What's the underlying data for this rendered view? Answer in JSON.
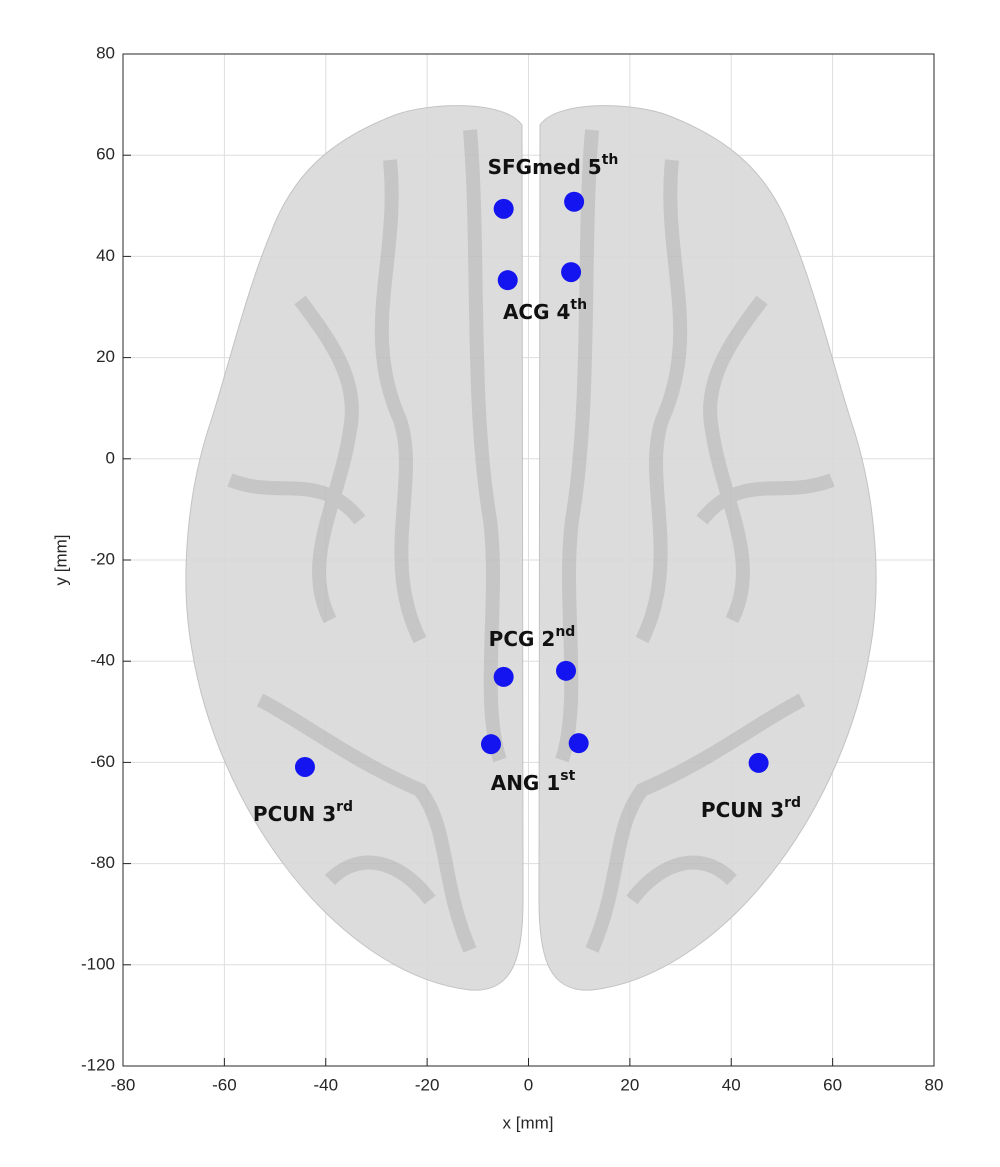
{
  "chart_data": {
    "type": "scatter",
    "x": [
      -4.9,
      9,
      -4.1,
      8.4,
      -4.9,
      7.4,
      -7.4,
      9.9,
      -44.1,
      45.4
    ],
    "values": [
      49.4,
      50.8,
      35.3,
      36.9,
      -43.1,
      -41.9,
      -56.4,
      -56.2,
      -60.9,
      -60.1
    ],
    "color": "#1414f0",
    "xlabel": "x [mm]",
    "ylabel": "y [mm]",
    "xlim": [
      -80,
      80
    ],
    "xticks": [
      -80,
      -60,
      -40,
      -20,
      0,
      20,
      40,
      60,
      80
    ],
    "ylim": [
      -120,
      80
    ],
    "yticks": [
      -120,
      -100,
      -80,
      -60,
      -40,
      -20,
      0,
      20,
      40,
      60,
      80
    ],
    "grid": true,
    "annotations": [
      {
        "text": "SFGmed 5",
        "sup": "th"
      },
      {
        "text": "ACG 4",
        "sup": "th"
      },
      {
        "text": "PCG 2",
        "sup": "nd"
      },
      {
        "text": "ANG 1",
        "sup": "st"
      },
      {
        "text": "PCUN 3",
        "sup": "rd"
      },
      {
        "text": "PCUN 3",
        "sup": "rd"
      }
    ]
  }
}
